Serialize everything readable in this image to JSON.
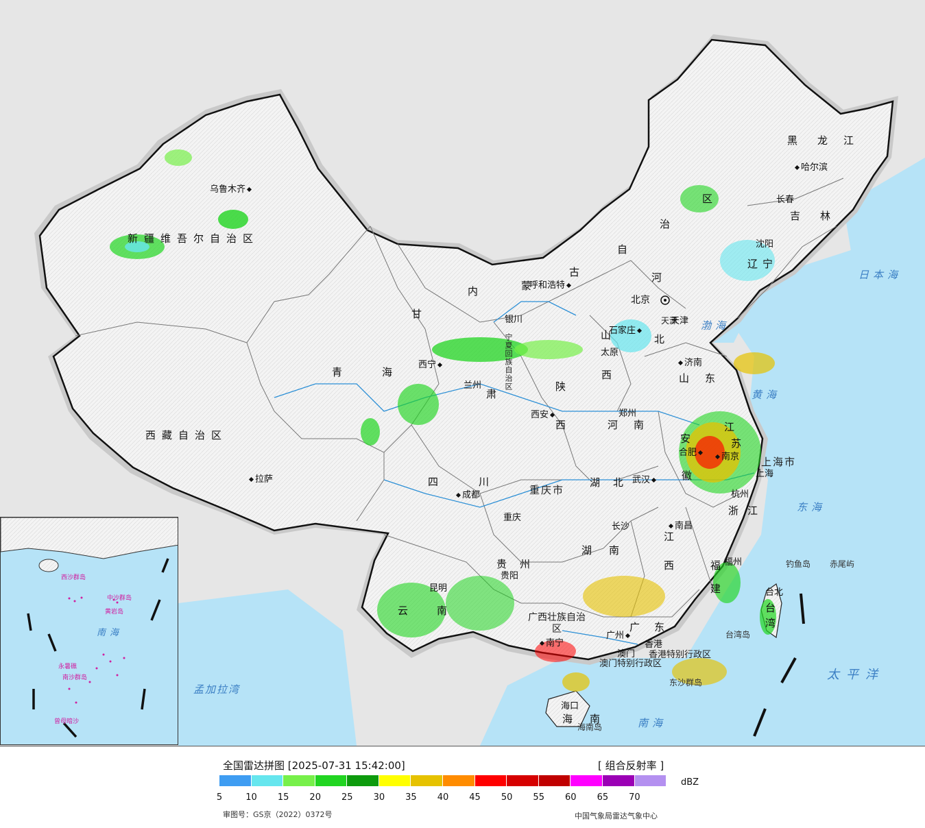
{
  "legend": {
    "title": "全国雷达拼图 [2025-07-31 15:42:00]",
    "product": "[ 组合反射率 ]",
    "unit": "dBZ",
    "colors": [
      "#3f9df2",
      "#66e6ee",
      "#77f04a",
      "#21d521",
      "#0d9b0d",
      "#ffff00",
      "#e6c200",
      "#ff8c00",
      "#ff0000",
      "#d60000",
      "#c00000",
      "#ff00ff",
      "#9b00b5",
      "#b490f0"
    ],
    "ticks": [
      "5",
      "10",
      "15",
      "20",
      "25",
      "30",
      "35",
      "40",
      "45",
      "50",
      "55",
      "60",
      "65",
      "70"
    ],
    "approval_number": "审图号：GS京（2022）0372号",
    "agency": "中国气象局雷达气象中心"
  },
  "provinces": [
    "新疆维吾尔自治区",
    "西藏自治区",
    "青",
    "海",
    "甘",
    "肃",
    "内",
    "蒙",
    "古",
    "自",
    "治",
    "区",
    "宁夏回族自治区",
    "陕",
    "西",
    "山",
    "西",
    "河",
    "北",
    "河",
    "南",
    "山",
    "东",
    "黑",
    "龙",
    "江",
    "吉",
    "林",
    "辽",
    "宁",
    "四",
    "川",
    "重庆市",
    "湖",
    "北",
    "湖",
    "南",
    "江",
    "西",
    "安",
    "徽",
    "江",
    "苏",
    "浙",
    "江",
    "福",
    "建",
    "贵",
    "州",
    "云",
    "南",
    "广西壮族自治区",
    "广",
    "东",
    "海",
    "南",
    "上海市",
    "天津",
    "香港特别行政区",
    "澳门特别行政区",
    "台",
    "湾"
  ],
  "cities": [
    "乌鲁木齐",
    "拉萨",
    "西宁",
    "兰州",
    "银川",
    "呼和浩特",
    "北京",
    "天津",
    "石家庄",
    "太原",
    "济南",
    "西安",
    "郑州",
    "合肥",
    "南京",
    "上海",
    "杭州",
    "武汉",
    "成都",
    "重庆",
    "长沙",
    "南昌",
    "福州",
    "台北",
    "贵阳",
    "昆明",
    "南宁",
    "广州",
    "香港",
    "澳门",
    "海口",
    "沈阳",
    "长春",
    "哈尔滨"
  ],
  "seas": [
    "渤海",
    "黄海",
    "东海",
    "日本海",
    "太平洋",
    "南海",
    "孟加拉湾"
  ],
  "islands": [
    "钓鱼岛",
    "赤尾屿",
    "台湾岛",
    "海南岛",
    "东沙群岛"
  ],
  "inset": {
    "labels": [
      "南海",
      "中沙群岛",
      "黄岩岛",
      "西沙群岛",
      "南沙群岛",
      "曾母暗沙",
      "永暑礁"
    ]
  }
}
